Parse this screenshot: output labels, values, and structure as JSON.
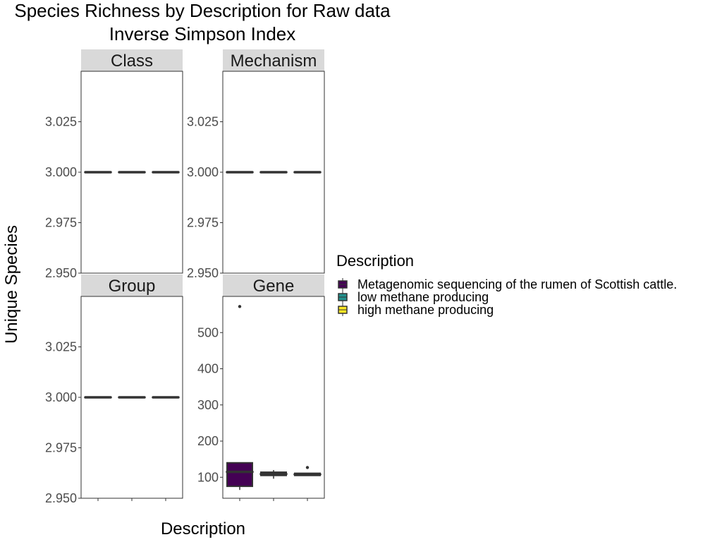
{
  "chart_data": {
    "type": "box",
    "title_line1": "Species Richness by Description for Raw data",
    "title_line2": "Inverse Simpson Index",
    "xlabel": "Description",
    "ylabel": "Unique Species",
    "legend": {
      "title": "Description",
      "position": "right",
      "entries": [
        {
          "label": "Metagenomic sequencing of the rumen of Scottish cattle.",
          "color": "#440154"
        },
        {
          "label": "low methane producing",
          "color": "#21908C"
        },
        {
          "label": "high methane producing",
          "color": "#FDE725"
        }
      ]
    },
    "facets": [
      {
        "name": "Class",
        "yticks": [
          "3.025",
          "3.000",
          "2.975",
          "2.950"
        ],
        "ylim": [
          2.95,
          3.05
        ],
        "boxes": [
          {
            "category": "Metagenomic sequencing of the rumen of Scottish cattle.",
            "min": 3.0,
            "q1": 3.0,
            "median": 3.0,
            "q3": 3.0,
            "max": 3.0,
            "outliers": []
          },
          {
            "category": "low methane producing",
            "min": 3.0,
            "q1": 3.0,
            "median": 3.0,
            "q3": 3.0,
            "max": 3.0,
            "outliers": []
          },
          {
            "category": "high methane producing",
            "min": 3.0,
            "q1": 3.0,
            "median": 3.0,
            "q3": 3.0,
            "max": 3.0,
            "outliers": []
          }
        ]
      },
      {
        "name": "Mechanism",
        "yticks": [
          "3.025",
          "3.000",
          "2.975",
          "2.950"
        ],
        "ylim": [
          2.95,
          3.05
        ],
        "boxes": [
          {
            "category": "Metagenomic sequencing of the rumen of Scottish cattle.",
            "min": 3.0,
            "q1": 3.0,
            "median": 3.0,
            "q3": 3.0,
            "max": 3.0,
            "outliers": []
          },
          {
            "category": "low methane producing",
            "min": 3.0,
            "q1": 3.0,
            "median": 3.0,
            "q3": 3.0,
            "max": 3.0,
            "outliers": []
          },
          {
            "category": "high methane producing",
            "min": 3.0,
            "q1": 3.0,
            "median": 3.0,
            "q3": 3.0,
            "max": 3.0,
            "outliers": []
          }
        ]
      },
      {
        "name": "Group",
        "yticks": [
          "3.025",
          "3.000",
          "2.975",
          "2.950"
        ],
        "ylim": [
          2.95,
          3.05
        ],
        "boxes": [
          {
            "category": "Metagenomic sequencing of the rumen of Scottish cattle.",
            "min": 3.0,
            "q1": 3.0,
            "median": 3.0,
            "q3": 3.0,
            "max": 3.0,
            "outliers": []
          },
          {
            "category": "low methane producing",
            "min": 3.0,
            "q1": 3.0,
            "median": 3.0,
            "q3": 3.0,
            "max": 3.0,
            "outliers": []
          },
          {
            "category": "high methane producing",
            "min": 3.0,
            "q1": 3.0,
            "median": 3.0,
            "q3": 3.0,
            "max": 3.0,
            "outliers": []
          }
        ]
      },
      {
        "name": "Gene",
        "yticks": [
          "500",
          "400",
          "300",
          "200",
          "100"
        ],
        "ylim": [
          42,
          600
        ],
        "boxes": [
          {
            "category": "Metagenomic sequencing of the rumen of Scottish cattle.",
            "min": 65,
            "q1": 75,
            "median": 115,
            "q3": 140,
            "max": 140,
            "outliers": [
              572
            ]
          },
          {
            "category": "low methane producing",
            "min": 96,
            "q1": 105,
            "median": 109,
            "q3": 114,
            "max": 120,
            "outliers": []
          },
          {
            "category": "high methane producing",
            "min": 104,
            "q1": 105,
            "median": 108,
            "q3": 111,
            "max": 112,
            "outliers": [
              127
            ]
          }
        ]
      }
    ]
  }
}
